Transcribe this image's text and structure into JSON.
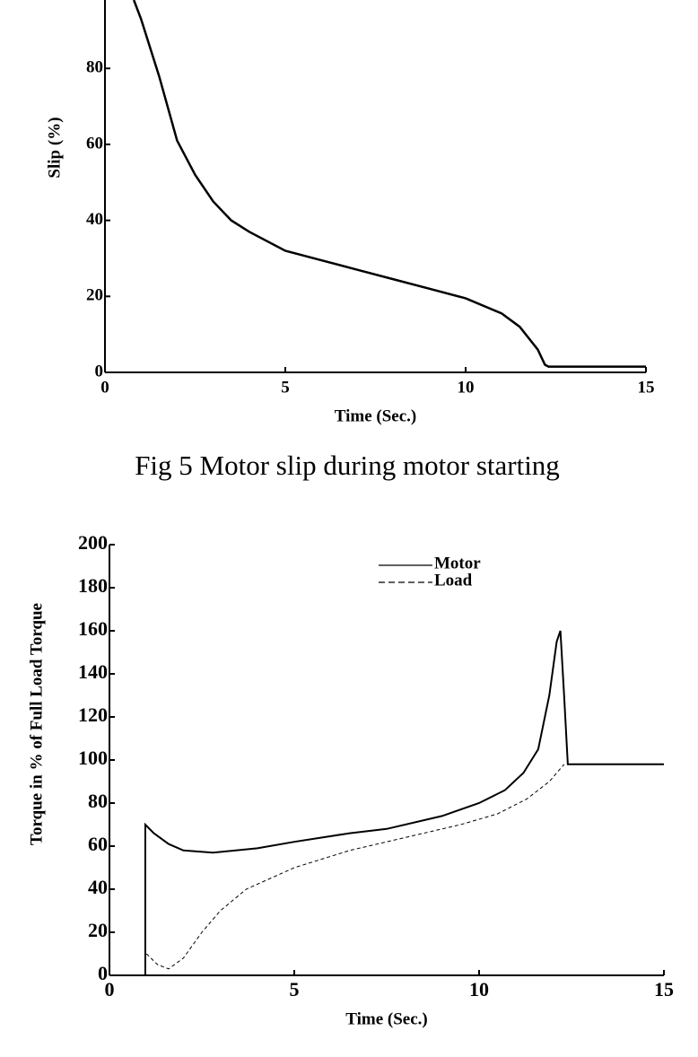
{
  "chart_data": [
    {
      "type": "line",
      "x_label": "Time (Sec.)",
      "y_label": "Slip (%)",
      "xlim": [
        0,
        15
      ],
      "ylim": [
        0,
        98
      ],
      "xticks": [
        0,
        5,
        10,
        15
      ],
      "yticks": [
        0,
        20,
        40,
        60,
        80
      ],
      "series": [
        {
          "color": "#000000",
          "linestyle": "solid",
          "x": [
            0.8,
            1,
            1.5,
            2,
            2.5,
            3,
            3.5,
            4,
            5,
            6,
            7,
            8,
            9,
            10,
            11,
            11.5,
            12,
            12.2,
            12.3,
            15
          ],
          "values": [
            98,
            93,
            78,
            61,
            52,
            45,
            40,
            37,
            32,
            29.5,
            27,
            24.5,
            22,
            19.5,
            15.5,
            12,
            6,
            2,
            1.5,
            1.5
          ]
        }
      ]
    },
    {
      "type": "line",
      "x_label": "Time (Sec.)",
      "y_label": "Torque in % of Full Load Torque",
      "xlim": [
        0,
        15
      ],
      "ylim": [
        0,
        200
      ],
      "xticks": [
        0,
        5,
        10,
        15
      ],
      "yticks": [
        0,
        20,
        40,
        60,
        80,
        100,
        120,
        140,
        160,
        180,
        200
      ],
      "legend": "top-right",
      "series": [
        {
          "name": "Motor",
          "color": "#000000",
          "linestyle": "solid",
          "x": [
            0.97,
            0.97,
            1.2,
            1.6,
            2,
            2.8,
            4,
            5,
            6.5,
            7.5,
            9,
            10,
            10.7,
            11.2,
            11.6,
            11.9,
            12.1,
            12.2,
            12.3,
            12.4,
            15
          ],
          "values": [
            0,
            70,
            66,
            61,
            58,
            57,
            59,
            62,
            66,
            68,
            74,
            80,
            86,
            94,
            105,
            130,
            155,
            160,
            130,
            98,
            98
          ]
        },
        {
          "name": "Load",
          "color": "#000000",
          "linestyle": "dashed",
          "x": [
            1,
            1.3,
            1.6,
            2,
            2.5,
            3,
            3.7,
            5,
            6.5,
            8,
            9.5,
            10.5,
            11.3,
            11.9,
            12.3
          ],
          "values": [
            10,
            5,
            3,
            8,
            20,
            30,
            40,
            50,
            58,
            64,
            70,
            75,
            82,
            90,
            98
          ]
        }
      ]
    }
  ],
  "caption": "Fig 5 Motor slip during motor starting"
}
